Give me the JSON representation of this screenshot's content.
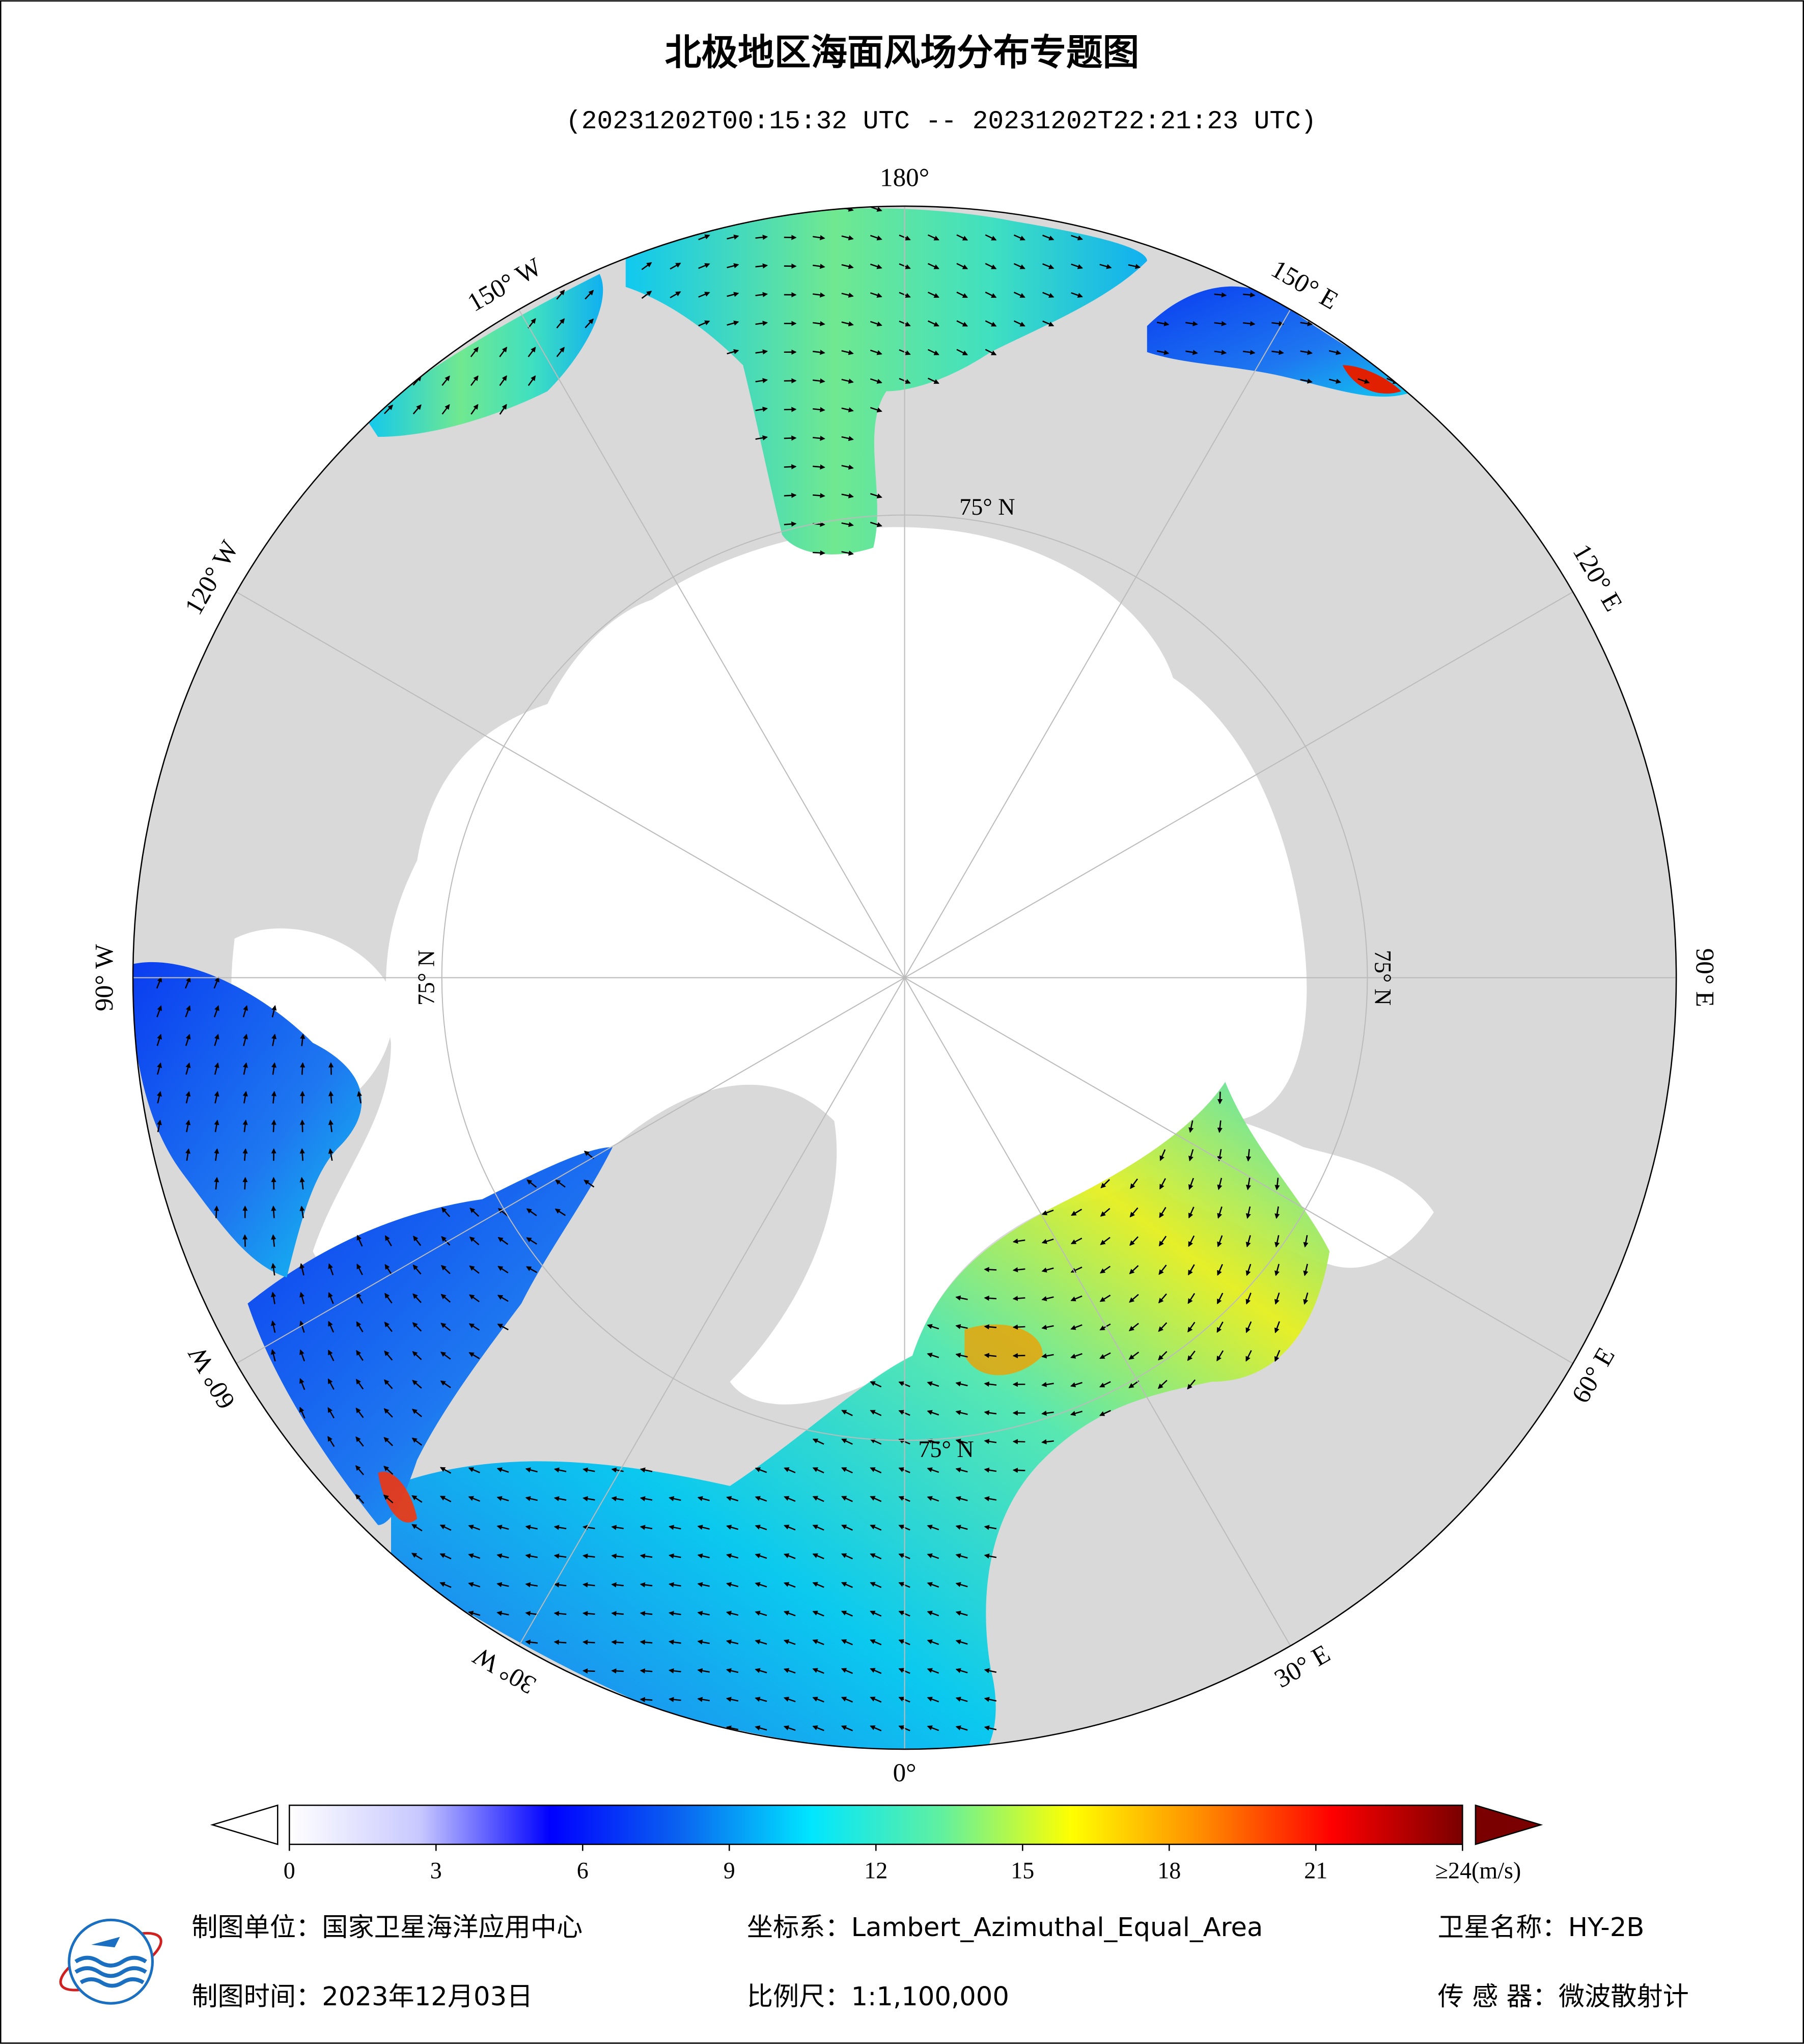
{
  "header": {
    "title": "北极地区海面风场分布专题图",
    "subtitle": "(20231202T00:15:32 UTC -- 20231202T22:21:23 UTC)"
  },
  "map": {
    "meridians": [
      {
        "value": 180,
        "label": "180°"
      },
      {
        "value": 150,
        "label": "150° E"
      },
      {
        "value": 120,
        "label": "120° E"
      },
      {
        "value": 90,
        "label": "90° E"
      },
      {
        "value": 60,
        "label": "60° E"
      },
      {
        "value": 30,
        "label": "30° E"
      },
      {
        "value": 0,
        "label": "0°"
      },
      {
        "value": -30,
        "label": "30° W"
      },
      {
        "value": -60,
        "label": "60° W"
      },
      {
        "value": -90,
        "label": "90° W"
      },
      {
        "value": -120,
        "label": "120° W"
      },
      {
        "value": -150,
        "label": "150° W"
      }
    ],
    "parallels": [
      {
        "value": 75,
        "label": "75° N"
      }
    ]
  },
  "colorbar": {
    "range": [
      0,
      24
    ],
    "ticks": [
      0,
      3,
      6,
      9,
      12,
      15,
      18,
      21,
      {
        "value": 24,
        "label": "≥24(m/s)"
      }
    ],
    "colors": [
      "#ffffff",
      "#c8c8ff",
      "#0000ff",
      "#0a64f0",
      "#00e6ff",
      "#60f0a0",
      "#ffff00",
      "#ff8c00",
      "#ff0000",
      "#7a0000"
    ]
  },
  "footer": {
    "unit": "制图单位：国家卫星海洋应用中心",
    "crs": "坐标系：Lambert_Azimuthal_Equal_Area",
    "satellite": "卫星名称：HY-2B",
    "date": "制图时间：2023年12月03日",
    "scale": "比例尺：1:1,100,000",
    "sensor": "传 感 器：微波散射计"
  }
}
